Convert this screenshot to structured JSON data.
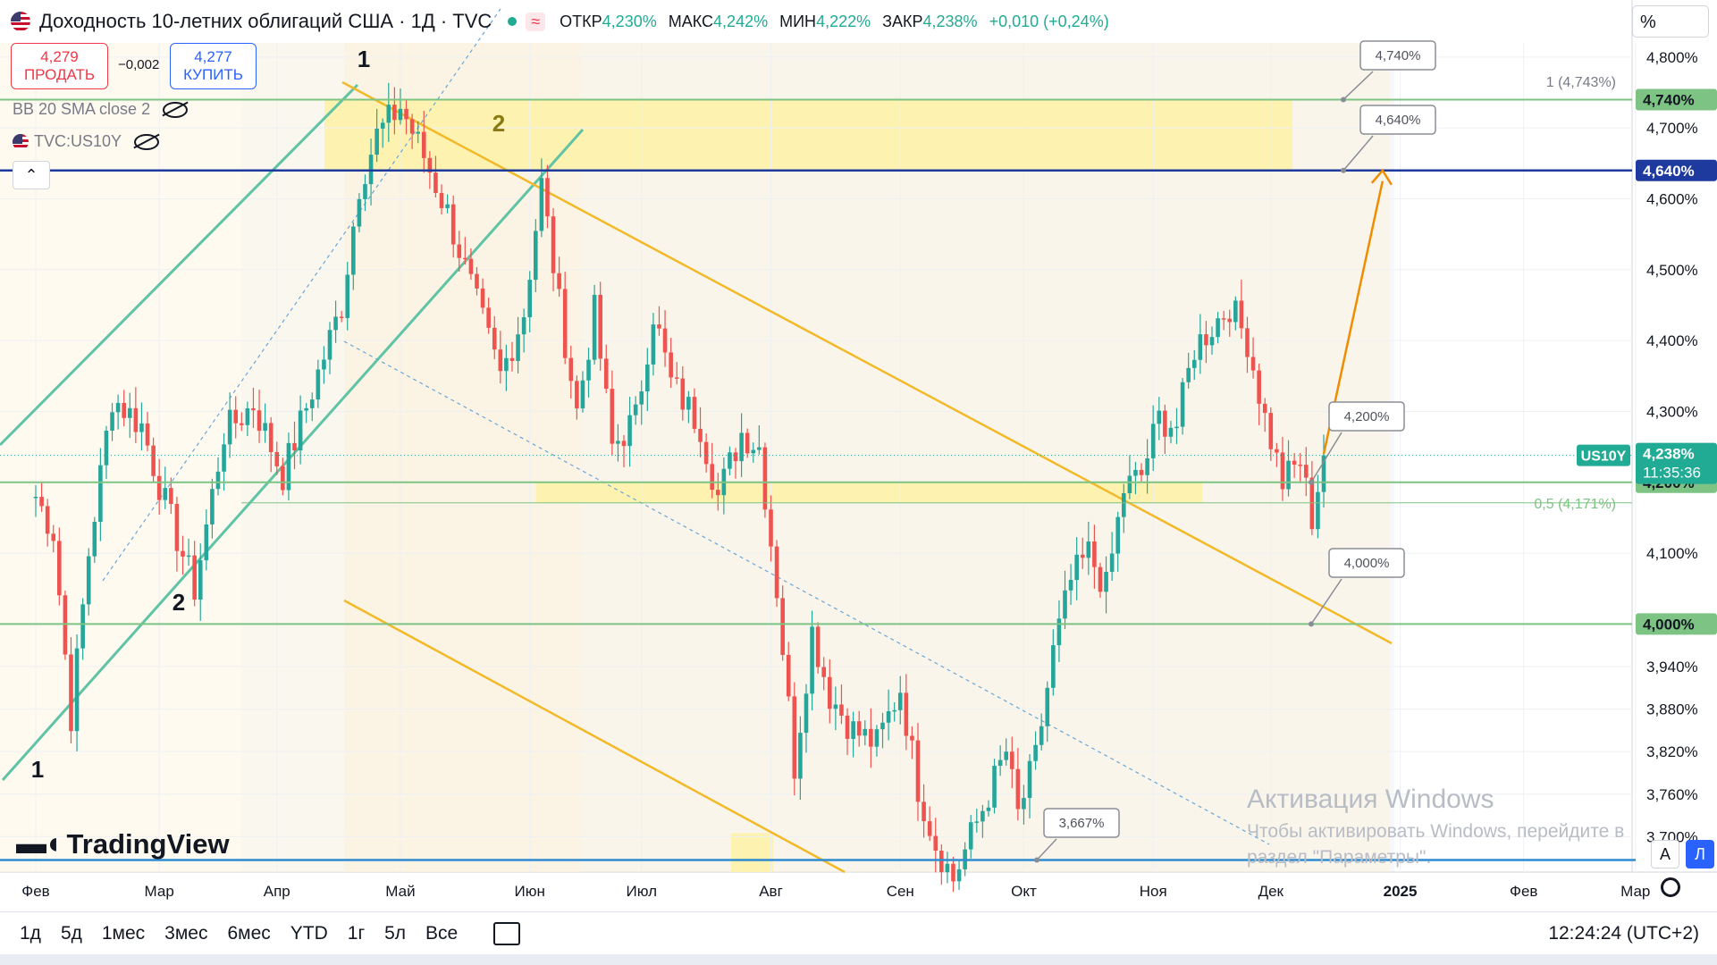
{
  "header": {
    "title": "Доходность 10-летних облигаций США · 1Д · TVC",
    "ohlc": [
      {
        "k": "ОТКР",
        "v": "4,230%"
      },
      {
        "k": "МАКС",
        "v": "4,242%"
      },
      {
        "k": "МИН",
        "v": "4,222%"
      },
      {
        "k": "ЗАКР",
        "v": "4,238%"
      },
      {
        "k": "",
        "v": "+0,010 (+0,24%)"
      }
    ],
    "status_color": "#22ab94"
  },
  "trade": {
    "sell_price": "4,279",
    "sell_label": "ПРОДАТЬ",
    "spread": "−0,002",
    "buy_price": "4,277",
    "buy_label": "КУПИТЬ"
  },
  "indicators": [
    "BB 20 SMA close 2",
    "TVC:US10Y"
  ],
  "scale_unit": "%",
  "colors": {
    "up": "#26a69a",
    "down": "#ef5350",
    "channel_green": "#5fc3a5",
    "channel_yellow": "#f2b928",
    "zone": "#fdf2b0",
    "level_blue": "#1e3a9f",
    "level_green": "#7dc383",
    "projection": "#f08c00",
    "last_price": "#22ab94"
  },
  "chart_data": {
    "type": "candlestick",
    "symbol": "US10Y",
    "last": {
      "price": "4,238%",
      "countdown": "11:35:36"
    },
    "ylim": [
      3.65,
      4.82
    ],
    "y_ticks": [
      "4,800%",
      "4,700%",
      "4,600%",
      "4,500%",
      "4,400%",
      "4,300%",
      "4,100%",
      "3,940%",
      "3,880%",
      "3,820%",
      "3,760%",
      "3,700%"
    ],
    "y_tick_values": [
      4.8,
      4.7,
      4.6,
      4.5,
      4.4,
      4.3,
      4.1,
      3.94,
      3.88,
      3.82,
      3.76,
      3.7
    ],
    "x_ticks": [
      "Фев",
      "Мар",
      "Апр",
      "Май",
      "Июн",
      "Июл",
      "Авг",
      "Сен",
      "Окт",
      "Ноя",
      "Дек",
      "2025",
      "Фев",
      "Мар"
    ],
    "x_tick_values": [
      0,
      21,
      41,
      62,
      84,
      103,
      125,
      147,
      168,
      190,
      210,
      232,
      253,
      272
    ],
    "levels": [
      {
        "label": "4,740%",
        "value": 4.74,
        "color": "#7dc383"
      },
      {
        "label": "4,640%",
        "value": 4.64,
        "color": "#1e3a9f"
      },
      {
        "label": "4,200%",
        "value": 4.2,
        "color": "#7dc383"
      },
      {
        "label": "4,000%",
        "value": 4.0,
        "color": "#7dc383"
      }
    ],
    "fib_labels": [
      {
        "text": "1 (4,743%)",
        "value": 4.743
      },
      {
        "text": "0,5 (4,171%)",
        "value": 4.171
      }
    ],
    "callouts": [
      "4,740%",
      "4,640%",
      "4,200%",
      "4,000%",
      "3,667%"
    ],
    "wave_labels": [
      "1",
      "2",
      "1",
      "2"
    ],
    "close_path": [
      {
        "x": 0,
        "y": 4.18
      },
      {
        "x": 3,
        "y": 4.13
      },
      {
        "x": 6,
        "y": 3.87
      },
      {
        "x": 9,
        "y": 4.1
      },
      {
        "x": 13,
        "y": 4.32
      },
      {
        "x": 18,
        "y": 4.28
      },
      {
        "x": 22,
        "y": 4.17
      },
      {
        "x": 27,
        "y": 4.05
      },
      {
        "x": 32,
        "y": 4.27
      },
      {
        "x": 37,
        "y": 4.31
      },
      {
        "x": 42,
        "y": 4.21
      },
      {
        "x": 47,
        "y": 4.33
      },
      {
        "x": 52,
        "y": 4.45
      },
      {
        "x": 55,
        "y": 4.62
      },
      {
        "x": 58,
        "y": 4.69
      },
      {
        "x": 62,
        "y": 4.73
      },
      {
        "x": 66,
        "y": 4.66
      },
      {
        "x": 70,
        "y": 4.58
      },
      {
        "x": 75,
        "y": 4.45
      },
      {
        "x": 79,
        "y": 4.35
      },
      {
        "x": 83,
        "y": 4.44
      },
      {
        "x": 86,
        "y": 4.62
      },
      {
        "x": 89,
        "y": 4.45
      },
      {
        "x": 92,
        "y": 4.3
      },
      {
        "x": 95,
        "y": 4.44
      },
      {
        "x": 98,
        "y": 4.25
      },
      {
        "x": 102,
        "y": 4.29
      },
      {
        "x": 105,
        "y": 4.44
      },
      {
        "x": 108,
        "y": 4.34
      },
      {
        "x": 113,
        "y": 4.28
      },
      {
        "x": 116,
        "y": 4.18
      },
      {
        "x": 120,
        "y": 4.27
      },
      {
        "x": 123,
        "y": 4.25
      },
      {
        "x": 126,
        "y": 4.05
      },
      {
        "x": 129,
        "y": 3.8
      },
      {
        "x": 132,
        "y": 3.99
      },
      {
        "x": 135,
        "y": 3.9
      },
      {
        "x": 139,
        "y": 3.85
      },
      {
        "x": 143,
        "y": 3.83
      },
      {
        "x": 147,
        "y": 3.91
      },
      {
        "x": 150,
        "y": 3.77
      },
      {
        "x": 153,
        "y": 3.69
      },
      {
        "x": 156,
        "y": 3.64
      },
      {
        "x": 159,
        "y": 3.7
      },
      {
        "x": 162,
        "y": 3.76
      },
      {
        "x": 165,
        "y": 3.82
      },
      {
        "x": 167,
        "y": 3.73
      },
      {
        "x": 170,
        "y": 3.81
      },
      {
        "x": 173,
        "y": 3.96
      },
      {
        "x": 176,
        "y": 4.06
      },
      {
        "x": 179,
        "y": 4.1
      },
      {
        "x": 182,
        "y": 4.05
      },
      {
        "x": 185,
        "y": 4.19
      },
      {
        "x": 188,
        "y": 4.21
      },
      {
        "x": 191,
        "y": 4.29
      },
      {
        "x": 194,
        "y": 4.28
      },
      {
        "x": 197,
        "y": 4.39
      },
      {
        "x": 200,
        "y": 4.42
      },
      {
        "x": 203,
        "y": 4.45
      },
      {
        "x": 206,
        "y": 4.4
      },
      {
        "x": 209,
        "y": 4.29
      },
      {
        "x": 212,
        "y": 4.2
      },
      {
        "x": 215,
        "y": 4.23
      },
      {
        "x": 217,
        "y": 4.15
      },
      {
        "x": 219,
        "y": 4.238
      }
    ],
    "projection": {
      "from_x": 219,
      "from_y": 4.24,
      "to_x": 229,
      "to_y": 4.64
    }
  },
  "bottom": {
    "ranges": [
      "1д",
      "5д",
      "1мес",
      "3мес",
      "6мес",
      "YTD",
      "1г",
      "5л",
      "Все"
    ],
    "clock": "12:24:24 (UTC+2)"
  },
  "branding": {
    "logo_text": "TradingView"
  },
  "watermark": {
    "line1": "Активация Windows",
    "line2": "Чтобы активировать Windows, перейдите в",
    "line3": "раздел \"Параметры\"."
  }
}
